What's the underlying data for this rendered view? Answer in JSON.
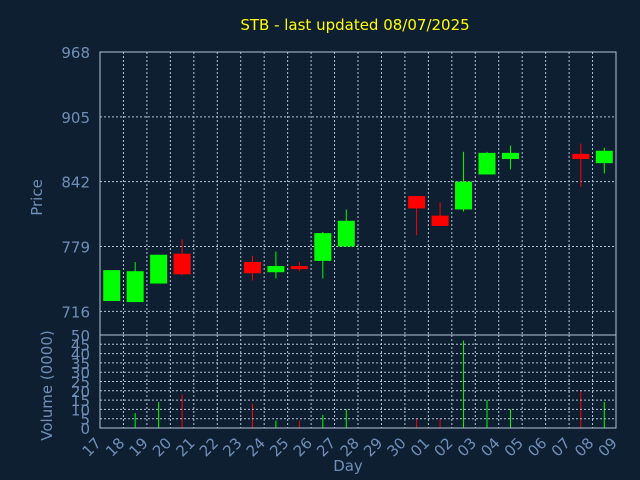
{
  "chart_data": {
    "type": "candlestick",
    "title": "STB - last updated 08/07/2025",
    "colors": {
      "background": "#0f1f32",
      "title": "#ffff00",
      "axis_text": "#6e8fb8",
      "frame": "#b4c3d7",
      "grid": "#b4c3d7",
      "up": "#00ff00",
      "down": "#ff0000"
    },
    "price_panel": {
      "ylabel": "Price",
      "ylim": [
        693,
        968
      ],
      "yticks": [
        716,
        779,
        842,
        905,
        968
      ],
      "grid": true
    },
    "volume_panel": {
      "ylabel": "Volume (0000)",
      "ylim": [
        0,
        50
      ],
      "yticks": [
        0,
        5,
        10,
        15,
        20,
        25,
        30,
        35,
        40,
        45,
        50
      ],
      "grid": true
    },
    "xlabel": "Day",
    "x_ticks": [
      "17",
      "18",
      "19",
      "20",
      "21",
      "22",
      "23",
      "24",
      "25",
      "26",
      "27",
      "28",
      "29",
      "30",
      "01",
      "02",
      "03",
      "04",
      "05",
      "06",
      "07",
      "08",
      "09"
    ],
    "candles": [
      {
        "i": 0,
        "o": 726,
        "h": 756,
        "l": 726,
        "c": 756,
        "v": 0
      },
      {
        "i": 1,
        "o": 725,
        "h": 764,
        "l": 725,
        "c": 755,
        "v": 8
      },
      {
        "i": 2,
        "o": 743,
        "h": 771,
        "l": 743,
        "c": 771,
        "v": 14
      },
      {
        "i": 3,
        "o": 772,
        "h": 786,
        "l": 751,
        "c": 752,
        "v": 18
      },
      {
        "i": 6,
        "o": 764,
        "h": 770,
        "l": 746,
        "c": 753,
        "v": 13
      },
      {
        "i": 7,
        "o": 754,
        "h": 774,
        "l": 748,
        "c": 760,
        "v": 4
      },
      {
        "i": 8,
        "o": 760,
        "h": 764,
        "l": 755,
        "c": 757,
        "v": 4
      },
      {
        "i": 9,
        "o": 765,
        "h": 793,
        "l": 748,
        "c": 792,
        "v": 7
      },
      {
        "i": 10,
        "o": 779,
        "h": 815,
        "l": 779,
        "c": 804,
        "v": 10
      },
      {
        "i": 13,
        "o": 828,
        "h": 828,
        "l": 790,
        "c": 816,
        "v": 5
      },
      {
        "i": 14,
        "o": 809,
        "h": 822,
        "l": 799,
        "c": 799,
        "v": 5
      },
      {
        "i": 15,
        "o": 815,
        "h": 871,
        "l": 813,
        "c": 842,
        "v": 47
      },
      {
        "i": 16,
        "o": 849,
        "h": 871,
        "l": 849,
        "c": 870,
        "v": 15
      },
      {
        "i": 17,
        "o": 864,
        "h": 877,
        "l": 854,
        "c": 870,
        "v": 10
      },
      {
        "i": 20,
        "o": 869,
        "h": 879,
        "l": 837,
        "c": 864,
        "v": 20
      },
      {
        "i": 21,
        "o": 860,
        "h": 875,
        "l": 850,
        "c": 872,
        "v": 14
      }
    ]
  }
}
